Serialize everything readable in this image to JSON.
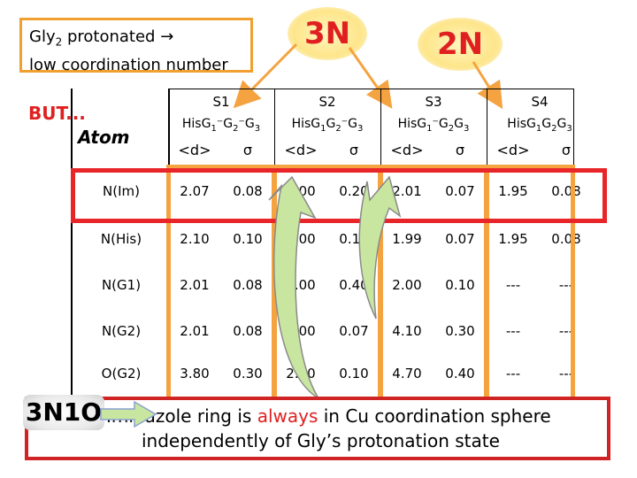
{
  "title_box": {
    "line1": "Gly",
    "line1_sub": "2",
    "line1_rest": " protonated → ",
    "line2": "low coordination number"
  },
  "badges": {
    "three_n": "3N",
    "two_n": "2N",
    "n3o1": "3N1O"
  },
  "but_label": "BUT...",
  "atom_label": "Atom",
  "systems": [
    {
      "name": "S1",
      "ligand": "His",
      "ligand_parts": [
        "G",
        "1",
        "⁻G",
        "2",
        "⁻G",
        "3"
      ],
      "ligand_text": "HisG1⁻G2⁻G3"
    },
    {
      "name": "S2",
      "ligand_text": "HisG1G2⁻G3"
    },
    {
      "name": "S3",
      "ligand_text": "HisG1⁻G2G3"
    },
    {
      "name": "S4",
      "ligand_text": "HisG1G2G3"
    }
  ],
  "subheaders": [
    "<d>",
    "σ"
  ],
  "table": {
    "rows": [
      {
        "atom": "N(Im)",
        "values": [
          "2.07",
          "0.08",
          "2.00",
          "0.20",
          "2.01",
          "0.07",
          "1.95",
          "0.08"
        ]
      },
      {
        "atom": "N(His)",
        "values": [
          "2.10",
          "0.10",
          "2.00",
          "0.10",
          "1.99",
          "0.07",
          "1.95",
          "0.08"
        ]
      },
      {
        "atom": "N(G1)",
        "values": [
          "2.01",
          "0.08",
          "3.00",
          "0.40",
          "2.00",
          "0.10",
          "---",
          "---"
        ]
      },
      {
        "atom": "N(G2)",
        "values": [
          "2.01",
          "0.08",
          "2.00",
          "0.07",
          "4.10",
          "0.30",
          "---",
          "---"
        ]
      },
      {
        "atom": "O(G2)",
        "values": [
          "3.80",
          "0.30",
          "2.20",
          "0.10",
          "4.70",
          "0.40",
          "---",
          "---"
        ]
      }
    ]
  },
  "note": {
    "line1_pre": "Imidazole ring is ",
    "line1_em": "always",
    "line1_post": " in Cu coordination sphere",
    "line2": "independently of Gly’s protonation state"
  },
  "colors": {
    "orange": "#f4a340",
    "red": "#e8262a",
    "badge_text": "#e02020",
    "arrow_fill": "#c8e6a0"
  }
}
